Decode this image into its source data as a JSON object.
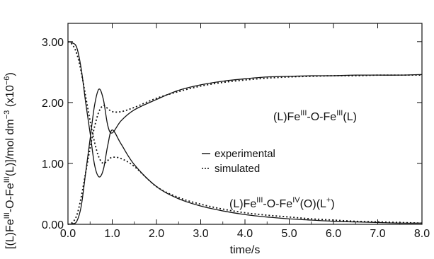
{
  "chart_data": {
    "type": "line",
    "xlabel": "time/s",
    "ylabel": {
      "pre": "[(L)Fe",
      "sup1": "III",
      "mid": "-O-Fe",
      "sup2": "III",
      "post": "(L)]/mol dm",
      "sup3": "−3",
      "scale_pre": " (x10",
      "sup4": "−6",
      "scale_post": ")"
    },
    "xlim": [
      0,
      8
    ],
    "ylim": [
      0,
      3.3
    ],
    "x_ticks": [
      "0.0",
      "1.0",
      "2.0",
      "3.0",
      "4.0",
      "5.0",
      "6.0",
      "7.0",
      "8.0"
    ],
    "y_ticks": [
      "0.00",
      "1.00",
      "2.00",
      "3.00"
    ],
    "legend": {
      "position": "center",
      "experimental": "experimental",
      "simulated": "simulated"
    },
    "annotations": {
      "upper": {
        "a": "(L)Fe",
        "s1": "III",
        "b": "-O-Fe",
        "s2": "III",
        "c": "(L)"
      },
      "lower": {
        "a": "(L)Fe",
        "s1": "III",
        "b": "-O-Fe",
        "s2": "IV",
        "c": "(O)(L",
        "s3": "+",
        "d": ")"
      }
    },
    "series": [
      {
        "line_style": "solid",
        "x": [
          0,
          0.1,
          0.2,
          0.3,
          0.4,
          0.5,
          0.6,
          0.7,
          0.8,
          0.9,
          1.0,
          1.2,
          1.5,
          2.0,
          2.5,
          3.0,
          3.5,
          4.0,
          4.5,
          5.0,
          5.5,
          6.0,
          6.5,
          7.0,
          7.5,
          8.0
        ],
        "y": [
          3.0,
          2.98,
          2.9,
          2.55,
          2.0,
          1.5,
          0.98,
          0.78,
          0.9,
          1.3,
          1.55,
          1.32,
          0.98,
          0.62,
          0.42,
          0.3,
          0.22,
          0.16,
          0.12,
          0.09,
          0.07,
          0.05,
          0.04,
          0.03,
          0.02,
          0.02
        ]
      },
      {
        "line_style": "solid",
        "x": [
          0,
          0.1,
          0.2,
          0.3,
          0.4,
          0.5,
          0.6,
          0.7,
          0.8,
          0.9,
          1.0,
          1.2,
          1.5,
          2.0,
          2.5,
          3.0,
          3.5,
          4.0,
          4.5,
          5.0,
          5.5,
          6.0,
          6.5,
          7.0,
          7.5,
          8.0
        ],
        "y": [
          0,
          0.01,
          0.05,
          0.3,
          0.85,
          1.4,
          1.95,
          2.22,
          2.05,
          1.62,
          1.5,
          1.7,
          1.88,
          2.05,
          2.2,
          2.29,
          2.35,
          2.39,
          2.42,
          2.43,
          2.44,
          2.44,
          2.45,
          2.45,
          2.45,
          2.46
        ]
      },
      {
        "line_style": "dotted",
        "x": [
          0,
          0.1,
          0.2,
          0.3,
          0.4,
          0.5,
          0.6,
          0.7,
          0.8,
          0.9,
          1.0,
          1.2,
          1.5,
          2.0,
          2.5,
          3.0,
          3.5,
          4.0,
          4.5,
          5.0,
          5.5,
          6.0,
          6.5,
          7.0,
          7.5,
          8.0
        ],
        "y": [
          3.0,
          2.95,
          2.8,
          2.5,
          2.1,
          1.7,
          1.35,
          1.1,
          1.0,
          1.05,
          1.1,
          1.08,
          0.95,
          0.62,
          0.44,
          0.33,
          0.25,
          0.19,
          0.15,
          0.12,
          0.09,
          0.07,
          0.05,
          0.04,
          0.03,
          0.02
        ]
      },
      {
        "line_style": "dotted",
        "x": [
          0,
          0.1,
          0.2,
          0.3,
          0.4,
          0.5,
          0.6,
          0.7,
          0.8,
          0.9,
          1.0,
          1.2,
          1.5,
          2.0,
          2.5,
          3.0,
          3.5,
          4.0,
          4.5,
          5.0,
          5.5,
          6.0,
          6.5,
          7.0,
          7.5,
          8.0
        ],
        "y": [
          0,
          0.03,
          0.15,
          0.45,
          0.85,
          1.25,
          1.6,
          1.85,
          1.95,
          1.9,
          1.85,
          1.85,
          1.92,
          2.07,
          2.18,
          2.27,
          2.33,
          2.37,
          2.4,
          2.42,
          2.43,
          2.44,
          2.44,
          2.45,
          2.45,
          2.45
        ]
      }
    ]
  }
}
